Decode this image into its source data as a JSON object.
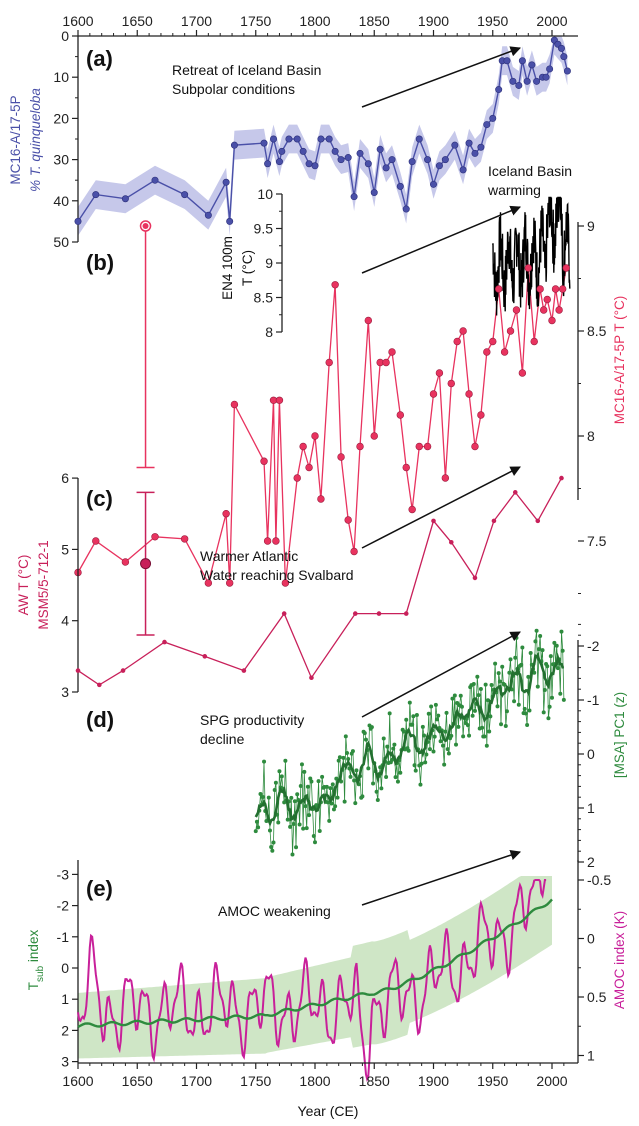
{
  "colors": {
    "a": "#4a50a8",
    "a_band": "#c6c8ea",
    "b": "#e8335f",
    "c": "#c8205a",
    "d": "#2e8b3e",
    "e_tsub": "#2e8b3e",
    "e_band": "#cfe6c6",
    "e_amoc": "#c8209a",
    "en4": "#000000"
  },
  "labels": {
    "a": {
      "letter": "(a)",
      "ylabel1": "MC16-A/17-5P",
      "ylabel2": "% T. quinqueloba",
      "anno1": "Retreat of Iceland Basin",
      "anno2": "Subpolar conditions"
    },
    "b": {
      "letter": "(b)",
      "ylabel": "MC16-A/17-5P T (°C)",
      "en4_label1": "EN4 100m",
      "en4_label2": "T (°C)",
      "anno1": "Iceland Basin",
      "anno2": "warming"
    },
    "c": {
      "letter": "(c)",
      "ylabel1": "AW T (°C)",
      "ylabel2": "MSM5/5-712-1",
      "anno1": "Warmer Atlantic",
      "anno2": "Water reaching Svalbard"
    },
    "d": {
      "letter": "(d)",
      "ylabel": "[MSA] PC1 (z)",
      "anno1": "SPG productivity",
      "anno2": "decline"
    },
    "e": {
      "letter": "(e)",
      "ylabel_left_main": "T",
      "ylabel_left_sub": "sub",
      "ylabel_left_rest": " index",
      "ylabel_right": "AMOC index (K)",
      "anno1": "AMOC weakening"
    },
    "xlabel": "Year (CE)"
  },
  "axes": {
    "x_top_ticks": [
      "1600",
      "1650",
      "1700",
      "1750",
      "1800",
      "1850",
      "1900",
      "1950",
      "2000"
    ],
    "x_bottom_ticks": [
      "1600",
      "1650",
      "1700",
      "1750",
      "1800",
      "1850",
      "1900",
      "1950",
      "2000"
    ],
    "a_ticks": [
      "0",
      "10",
      "20",
      "30",
      "40",
      "50"
    ],
    "b_right_ticks": [
      "7.5",
      "8",
      "8.5",
      "9"
    ],
    "b_en4_ticks": [
      "8",
      "8.5",
      "9",
      "9.5",
      "10"
    ],
    "c_ticks": [
      "3",
      "4",
      "5",
      "6"
    ],
    "d_ticks": [
      "-2",
      "-1",
      "0",
      "1",
      "2"
    ],
    "e_left_ticks": [
      "-3",
      "-2",
      "-1",
      "0",
      "1",
      "2",
      "3"
    ],
    "e_right_ticks": [
      "-0.5",
      "0",
      "0.5",
      "1"
    ]
  },
  "chart_data": [
    {
      "panel": "a",
      "type": "line",
      "ylabel": "MC16-A/17-5P % T. quinqueloba",
      "ylim": [
        50,
        0
      ],
      "xlim": [
        1600,
        2015
      ],
      "x": [
        1600,
        1615,
        1640,
        1665,
        1690,
        1710,
        1725,
        1728,
        1732,
        1757,
        1760,
        1765,
        1770,
        1772,
        1778,
        1785,
        1790,
        1795,
        1800,
        1805,
        1812,
        1817,
        1822,
        1828,
        1833,
        1838,
        1845,
        1850,
        1855,
        1860,
        1865,
        1872,
        1877,
        1882,
        1888,
        1895,
        1900,
        1905,
        1910,
        1918,
        1925,
        1930,
        1935,
        1940,
        1945,
        1950,
        1955,
        1958,
        1962,
        1967,
        1972,
        1975,
        1979,
        1983,
        1987,
        1992,
        1995,
        1998,
        2002,
        2005,
        2008,
        2010,
        2013
      ],
      "values": [
        45,
        38.5,
        39.5,
        35,
        38.5,
        43.5,
        35.5,
        45,
        26.5,
        26,
        31,
        25,
        30.5,
        28,
        25,
        25,
        28,
        31,
        31.5,
        25,
        25,
        28,
        30,
        29.5,
        39,
        28.5,
        31,
        38,
        27.5,
        32,
        30,
        36.5,
        42,
        30.5,
        25,
        30,
        36,
        31.5,
        30,
        26.5,
        32.5,
        26,
        28.5,
        27,
        21.5,
        20,
        13,
        6,
        6,
        11,
        12,
        6,
        11,
        7,
        11,
        10,
        10,
        8,
        1,
        2,
        3,
        5,
        8.5
      ],
      "band_width": 3.5
    },
    {
      "panel": "b",
      "type": "line",
      "ylabel": "MC16-A/17-5P T (°C)",
      "ylim": [
        7.2,
        9.2
      ],
      "xlim": [
        1600,
        2015
      ],
      "x": [
        1600,
        1615,
        1640,
        1665,
        1690,
        1710,
        1725,
        1728,
        1732,
        1757,
        1760,
        1765,
        1767,
        1770,
        1775,
        1785,
        1790,
        1795,
        1800,
        1805,
        1812,
        1817,
        1822,
        1828,
        1833,
        1838,
        1845,
        1850,
        1855,
        1860,
        1865,
        1872,
        1877,
        1882,
        1888,
        1895,
        1900,
        1905,
        1910,
        1915,
        1920,
        1925,
        1930,
        1935,
        1940,
        1945,
        1950,
        1955,
        1960,
        1965,
        1970,
        1975,
        1980,
        1985,
        1990,
        1993,
        1996,
        2000,
        2003,
        2006,
        2009,
        2012
      ],
      "values": [
        7.35,
        7.5,
        7.4,
        7.52,
        7.51,
        7.3,
        7.63,
        7.3,
        8.15,
        7.88,
        7.5,
        8.17,
        7.5,
        8.17,
        7.3,
        7.8,
        7.95,
        7.85,
        8.0,
        7.7,
        8.35,
        8.72,
        7.9,
        7.6,
        7.45,
        7.95,
        8.55,
        8.0,
        8.35,
        8.35,
        8.4,
        8.1,
        7.85,
        7.65,
        7.95,
        7.95,
        8.2,
        8.3,
        7.8,
        8.25,
        8.45,
        8.5,
        8.2,
        7.95,
        8.1,
        8.4,
        8.45,
        8.7,
        8.4,
        8.5,
        8.6,
        8.3,
        8.8,
        8.45,
        8.7,
        8.6,
        8.65,
        8.55,
        8.7,
        8.6,
        8.7,
        8.8
      ],
      "error_bar": {
        "x": 1657,
        "center": 8.55,
        "low": 7.85,
        "high": 9.0
      },
      "inset_en4": {
        "ylabel": "EN4 100m T (°C)",
        "ylim": [
          8,
          10
        ],
        "x_range": [
          1950,
          2015
        ]
      }
    },
    {
      "panel": "c",
      "type": "line",
      "ylabel": "AW T (°C) MSM5/5-712-1",
      "ylim": [
        3,
        6
      ],
      "xlim": [
        1600,
        2015
      ],
      "x": [
        1600,
        1618,
        1638,
        1673,
        1707,
        1740,
        1774,
        1797,
        1834,
        1854,
        1877,
        1900,
        1915,
        1935,
        1951,
        1969,
        1988,
        2008
      ],
      "values": [
        3.3,
        3.1,
        3.3,
        3.7,
        3.5,
        3.3,
        4.1,
        3.2,
        4.1,
        4.1,
        4.1,
        5.4,
        5.1,
        4.6,
        5.4,
        5.8,
        5.4,
        6.0
      ],
      "error_bar": {
        "x": 1657,
        "center": 4.8,
        "low": 3.8,
        "high": 5.8
      }
    },
    {
      "panel": "d",
      "type": "line",
      "ylabel": "[MSA] PC1 (z)",
      "ylim": [
        2,
        -2.5
      ],
      "xlim": [
        1750,
        2015
      ],
      "x_range": [
        1750,
        2010
      ]
    },
    {
      "panel": "e",
      "type": "line",
      "series": [
        {
          "name": "Tsub index",
          "ylim": [
            3,
            -3
          ]
        },
        {
          "name": "AMOC index (K)",
          "ylim": [
            1.2,
            -0.55
          ]
        }
      ],
      "xlabel": "Year (CE)",
      "xlim": [
        1600,
        2015
      ]
    }
  ]
}
